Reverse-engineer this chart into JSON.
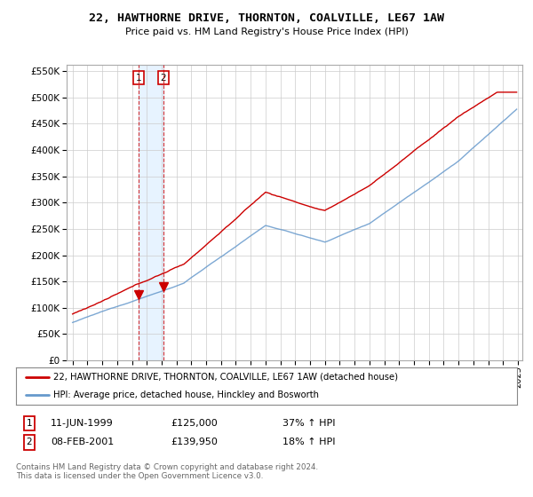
{
  "title": "22, HAWTHORNE DRIVE, THORNTON, COALVILLE, LE67 1AW",
  "subtitle": "Price paid vs. HM Land Registry's House Price Index (HPI)",
  "legend_line1": "22, HAWTHORNE DRIVE, THORNTON, COALVILLE, LE67 1AW (detached house)",
  "legend_line2": "HPI: Average price, detached house, Hinckley and Bosworth",
  "transaction1_date": "11-JUN-1999",
  "transaction1_price": "£125,000",
  "transaction1_hpi": "37% ↑ HPI",
  "transaction2_date": "08-FEB-2001",
  "transaction2_price": "£139,950",
  "transaction2_hpi": "18% ↑ HPI",
  "footer": "Contains HM Land Registry data © Crown copyright and database right 2024.\nThis data is licensed under the Open Government Licence v3.0.",
  "ylim": [
    0,
    562500
  ],
  "yticks": [
    0,
    50000,
    100000,
    150000,
    200000,
    250000,
    300000,
    350000,
    400000,
    450000,
    500000,
    550000
  ],
  "red_color": "#cc0000",
  "blue_color": "#6699cc",
  "blue_light": "#ddeeff",
  "marker1_x": 1999.44,
  "marker1_y": 125000,
  "marker2_x": 2001.1,
  "marker2_y": 139950,
  "xlim_left": 1994.6,
  "xlim_right": 2025.3,
  "background_color": "#ffffff",
  "grid_color": "#cccccc"
}
